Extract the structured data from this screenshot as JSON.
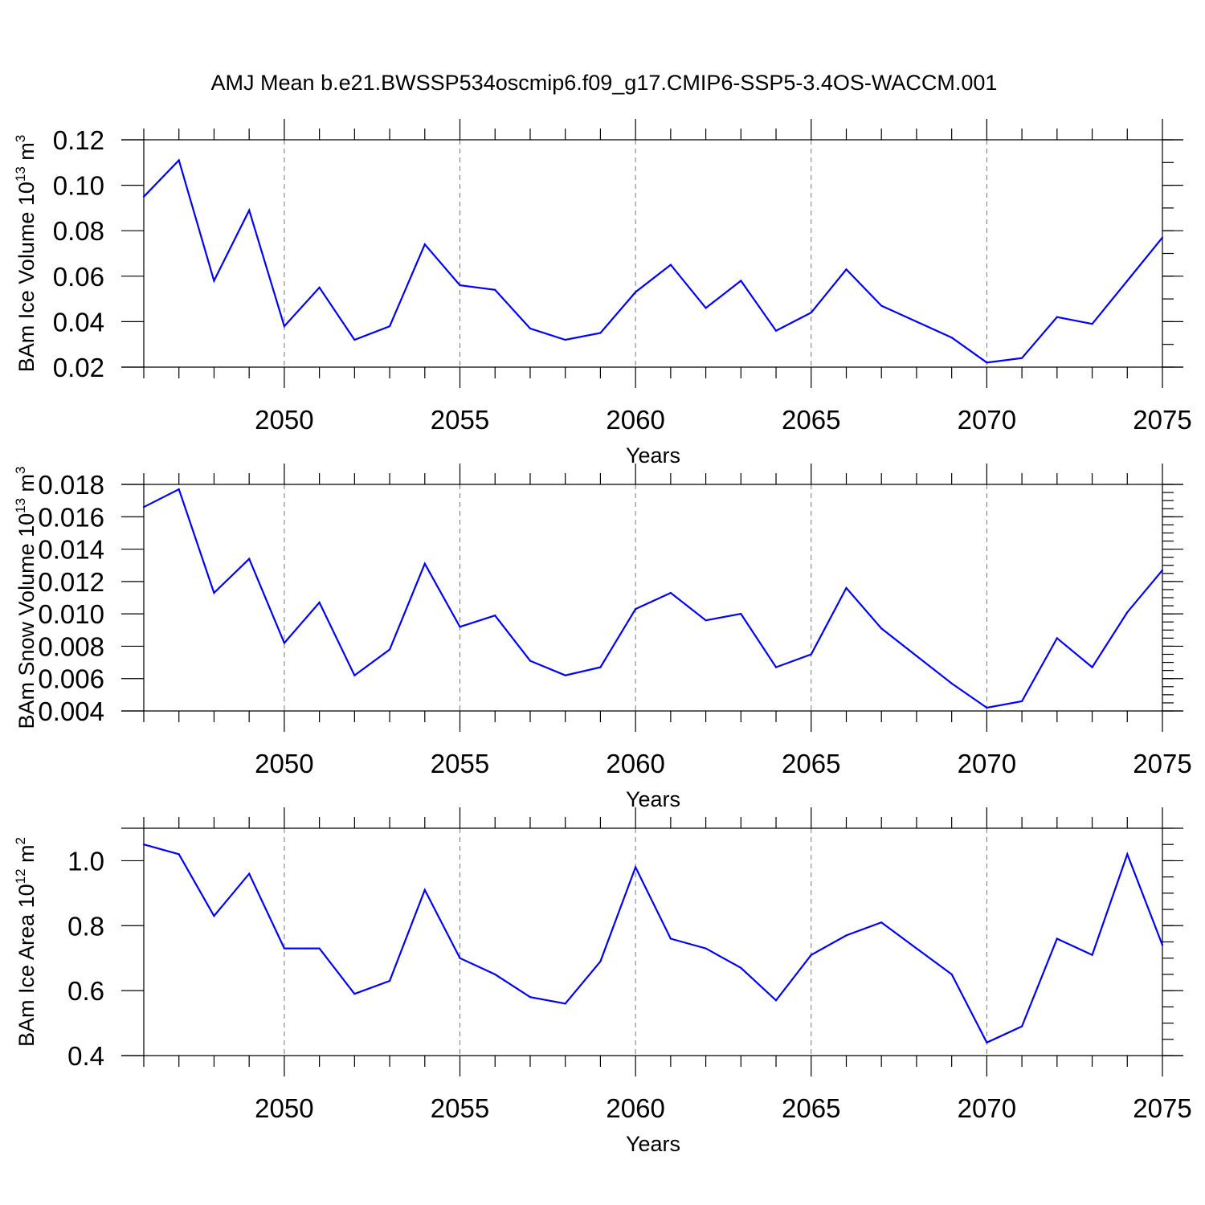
{
  "title": "AMJ Mean b.e21.BWSSP534oscmip6.f09_g17.CMIP6-SSP5-3.4OS-WACCM.001",
  "chart_data": [
    {
      "type": "line",
      "ylabel_text": "BAm Ice Volume 10",
      "ylabel_exp": "13",
      "ylabel_unit": " m",
      "ylabel_unit_exp": "3",
      "xlabel": "Years",
      "xlim": [
        2046,
        2075
      ],
      "ylim": [
        0.02,
        0.12
      ],
      "yticks": [
        0.02,
        0.04,
        0.06,
        0.08,
        0.1,
        0.12
      ],
      "ytick_labels": [
        "0.02",
        "0.04",
        "0.06",
        "0.08",
        "0.10",
        "0.12"
      ],
      "ytick_minor": 0.01,
      "xticks": [
        2050,
        2055,
        2060,
        2065,
        2070,
        2075
      ],
      "xtick_labels": [
        "2050",
        "2055",
        "2060",
        "2065",
        "2070",
        "2075"
      ],
      "grid": "x-dashed",
      "color": "#0000ff",
      "x": [
        2046,
        2047,
        2048,
        2049,
        2050,
        2051,
        2052,
        2053,
        2054,
        2055,
        2056,
        2057,
        2058,
        2059,
        2060,
        2061,
        2062,
        2063,
        2064,
        2065,
        2066,
        2067,
        2068,
        2069,
        2070,
        2071,
        2072,
        2073,
        2074,
        2075
      ],
      "y": [
        0.095,
        0.111,
        0.058,
        0.089,
        0.038,
        0.055,
        0.032,
        0.038,
        0.074,
        0.056,
        0.054,
        0.037,
        0.032,
        0.035,
        0.053,
        0.065,
        0.046,
        0.058,
        0.036,
        0.044,
        0.063,
        0.047,
        0.04,
        0.033,
        0.022,
        0.024,
        0.042,
        0.039,
        0.058,
        0.077
      ]
    },
    {
      "type": "line",
      "ylabel_text": "BAm Snow Volume 10",
      "ylabel_exp": "13",
      "ylabel_unit": " m",
      "ylabel_unit_exp": "3",
      "xlabel": "Years",
      "xlim": [
        2046,
        2075
      ],
      "ylim": [
        0.004,
        0.018
      ],
      "yticks": [
        0.004,
        0.006,
        0.008,
        0.01,
        0.012,
        0.014,
        0.016,
        0.018
      ],
      "ytick_labels": [
        "0.004",
        "0.006",
        "0.008",
        "0.010",
        "0.012",
        "0.014",
        "0.016",
        "0.018"
      ],
      "ytick_minor": 0.0005,
      "xticks": [
        2050,
        2055,
        2060,
        2065,
        2070,
        2075
      ],
      "xtick_labels": [
        "2050",
        "2055",
        "2060",
        "2065",
        "2070",
        "2075"
      ],
      "grid": "x-dashed",
      "color": "#0000ff",
      "x": [
        2046,
        2047,
        2048,
        2049,
        2050,
        2051,
        2052,
        2053,
        2054,
        2055,
        2056,
        2057,
        2058,
        2059,
        2060,
        2061,
        2062,
        2063,
        2064,
        2065,
        2066,
        2067,
        2068,
        2069,
        2070,
        2071,
        2072,
        2073,
        2074,
        2075
      ],
      "y": [
        0.0166,
        0.0177,
        0.0113,
        0.0134,
        0.0082,
        0.0107,
        0.0062,
        0.0078,
        0.0131,
        0.0092,
        0.0099,
        0.0071,
        0.0062,
        0.0067,
        0.0103,
        0.0113,
        0.0096,
        0.01,
        0.0067,
        0.0075,
        0.0116,
        0.0091,
        0.0074,
        0.0057,
        0.0042,
        0.0046,
        0.0085,
        0.0067,
        0.0101,
        0.0127
      ]
    },
    {
      "type": "line",
      "ylabel_text": "BAm Ice Area 10",
      "ylabel_exp": "12",
      "ylabel_unit": " m",
      "ylabel_unit_exp": "2",
      "xlabel": "Years",
      "xlim": [
        2046,
        2075
      ],
      "ylim": [
        0.4,
        1.1
      ],
      "yticks": [
        0.4,
        0.6,
        0.8,
        1.0
      ],
      "ytick_labels": [
        "0.4",
        "0.6",
        "0.8",
        "1.0"
      ],
      "ytick_minor": 0.05,
      "xticks": [
        2050,
        2055,
        2060,
        2065,
        2070,
        2075
      ],
      "xtick_labels": [
        "2050",
        "2055",
        "2060",
        "2065",
        "2070",
        "2075"
      ],
      "grid": "x-dashed",
      "color": "#0000ff",
      "x": [
        2046,
        2047,
        2048,
        2049,
        2050,
        2051,
        2052,
        2053,
        2054,
        2055,
        2056,
        2057,
        2058,
        2059,
        2060,
        2061,
        2062,
        2063,
        2064,
        2065,
        2066,
        2067,
        2068,
        2069,
        2070,
        2071,
        2072,
        2073,
        2074,
        2075
      ],
      "y": [
        1.05,
        1.02,
        0.83,
        0.96,
        0.73,
        0.73,
        0.59,
        0.63,
        0.91,
        0.7,
        0.65,
        0.58,
        0.56,
        0.69,
        0.98,
        0.76,
        0.73,
        0.67,
        0.57,
        0.71,
        0.77,
        0.81,
        0.73,
        0.65,
        0.44,
        0.49,
        0.76,
        0.71,
        1.02,
        0.74
      ]
    }
  ]
}
